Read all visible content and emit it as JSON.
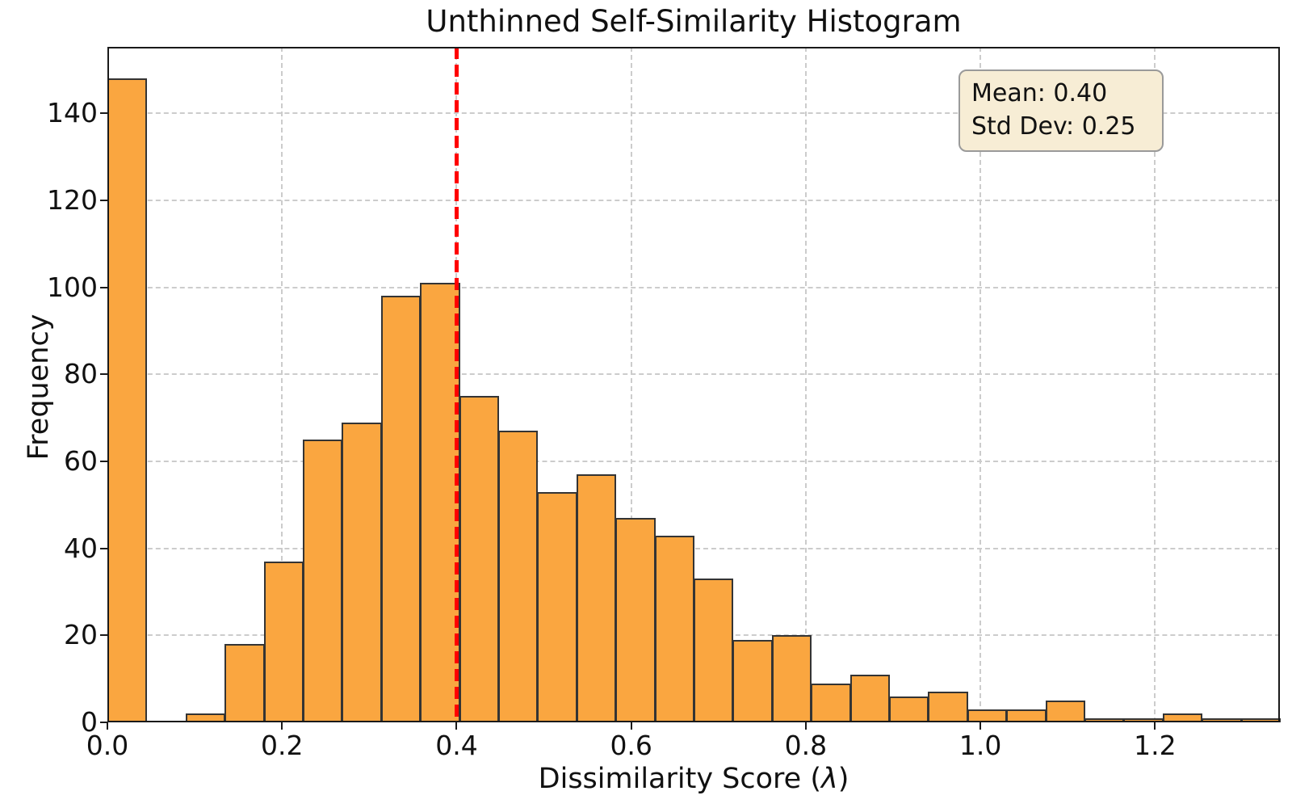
{
  "chart_data": {
    "type": "bar",
    "subtype": "histogram",
    "title": "Unthinned Self-Similarity Histogram",
    "xlabel": "Dissimilarity Score (λ)",
    "xlabel_parts": {
      "prefix": "Dissimilarity Score (",
      "symbol": "λ",
      "suffix": ")"
    },
    "ylabel": "Frequency",
    "bin_start": 0.0,
    "bin_width": 0.04477,
    "counts": [
      148,
      0,
      2,
      18,
      37,
      65,
      69,
      98,
      101,
      75,
      67,
      53,
      57,
      47,
      43,
      33,
      19,
      20,
      9,
      11,
      6,
      7,
      3,
      3,
      5,
      1,
      1,
      2,
      1,
      1
    ],
    "xlim": [
      0.0,
      1.343
    ],
    "ylim": [
      0,
      155.3
    ],
    "xticks": [
      0.0,
      0.2,
      0.4,
      0.6,
      0.8,
      1.0,
      1.2
    ],
    "xtick_labels": [
      "0.0",
      "0.2",
      "0.4",
      "0.6",
      "0.8",
      "1.0",
      "1.2"
    ],
    "yticks": [
      0,
      20,
      40,
      60,
      80,
      100,
      120,
      140
    ],
    "ytick_labels": [
      "0",
      "20",
      "40",
      "60",
      "80",
      "100",
      "120",
      "140"
    ],
    "grid": "dashed",
    "legend": "none",
    "mean_line": {
      "x": 0.4,
      "color": "#ff0000",
      "style": "dashed"
    },
    "annotation": {
      "line1": "Mean: 0.40",
      "line2": "Std Dev: 0.25"
    },
    "colors": {
      "bar_fill": "#FAA640",
      "bar_edge": "#343434",
      "grid": "#cccccc",
      "mean_line": "#ff0000",
      "annotation_bg": "#F7EDD5",
      "annotation_border": "#9a9a9a"
    }
  }
}
